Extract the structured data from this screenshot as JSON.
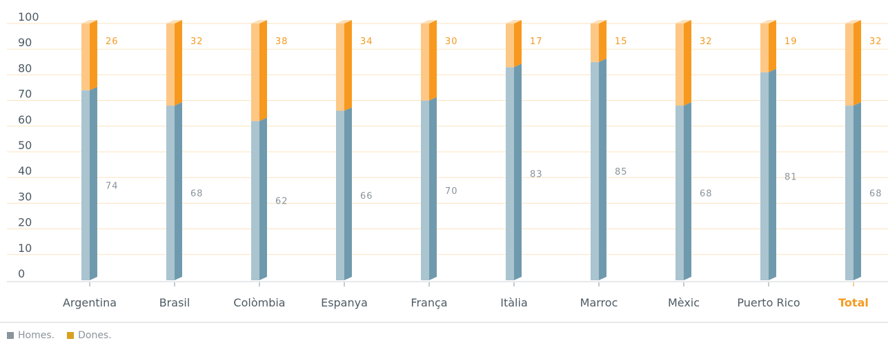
{
  "colors": {
    "men_front": "#aac4d0",
    "men_side": "#6f9aad",
    "women_front": "#fdc885",
    "women_side": "#f7991f",
    "top": "#fde0b8",
    "grid": "#fbe3c0",
    "axis": "#cfd3d6",
    "highlight": "#f39a1f",
    "legend_men": "#8a949b",
    "legend_women": "#d9a020"
  },
  "legend": [
    {
      "label": "Homes.",
      "swatch": "legend_men"
    },
    {
      "label": "Dones.",
      "swatch": "legend_women"
    }
  ],
  "chart_data": {
    "type": "bar",
    "stacked": true,
    "categories": [
      "Argentina",
      "Brasil",
      "Colòmbia",
      "Espanya",
      "França",
      "Itàlia",
      "Marroc",
      "Mèxic",
      "Puerto Rico",
      "Total"
    ],
    "highlight_category": "Total",
    "series": [
      {
        "name": "Homes.",
        "values": [
          74,
          68,
          62,
          66,
          70,
          83,
          85,
          68,
          81,
          68
        ]
      },
      {
        "name": "Dones.",
        "values": [
          26,
          32,
          38,
          34,
          30,
          17,
          15,
          32,
          19,
          32
        ]
      }
    ],
    "ylim": [
      0,
      100
    ],
    "yticks": [
      0,
      10,
      20,
      30,
      40,
      50,
      60,
      70,
      80,
      90,
      100
    ],
    "grid": true,
    "legend_position": "bottom-left"
  }
}
